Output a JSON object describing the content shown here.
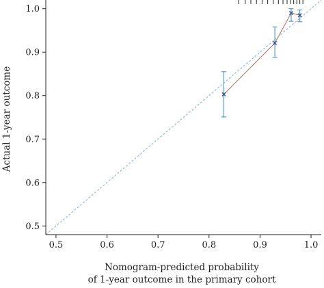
{
  "chart_data": {
    "type": "scatter",
    "title": "",
    "xlabel_lines": [
      "Nomogram-predicted probability",
      "of 1-year outcome in the primary cohort"
    ],
    "ylabel": "Actual 1-year outcome",
    "xlim": [
      0.48,
      1.02
    ],
    "ylim": [
      0.48,
      1.02
    ],
    "x_ticks": [
      0.5,
      0.6,
      0.7,
      0.8,
      0.9,
      1.0
    ],
    "x_tick_labels": [
      "0.5",
      "0.6",
      "0.7",
      "0.8",
      "0.9",
      "1.0"
    ],
    "y_ticks": [
      0.5,
      0.6,
      0.7,
      0.8,
      0.9,
      1.0
    ],
    "y_tick_labels": [
      "0.5",
      "0.6",
      "0.7",
      "0.8",
      "0.9",
      "1.0"
    ],
    "points": [
      {
        "x": 0.829,
        "y": 0.803,
        "lower": 0.751,
        "upper": 0.855
      },
      {
        "x": 0.929,
        "y": 0.921,
        "lower": 0.888,
        "upper": 0.958
      },
      {
        "x": 0.961,
        "y": 0.99,
        "lower": 0.971,
        "upper": 1.0
      },
      {
        "x": 0.978,
        "y": 0.985,
        "lower": 0.97,
        "upper": 0.997
      }
    ],
    "reference_line": {
      "from": [
        0.48,
        0.48
      ],
      "to": [
        1.02,
        1.02
      ]
    },
    "rug_x": [
      0.858,
      0.871,
      0.882,
      0.893,
      0.904,
      0.915,
      0.926,
      0.936,
      0.945,
      0.953,
      0.96,
      0.966,
      0.972,
      0.978,
      0.984
    ],
    "grid": false,
    "colors": {
      "errorbar": "#5599c8",
      "marker": "#3a4f8f",
      "connector": "#b87a6e",
      "reference": "#7eaed0",
      "axis": "#222222",
      "rug": "#222222"
    }
  }
}
